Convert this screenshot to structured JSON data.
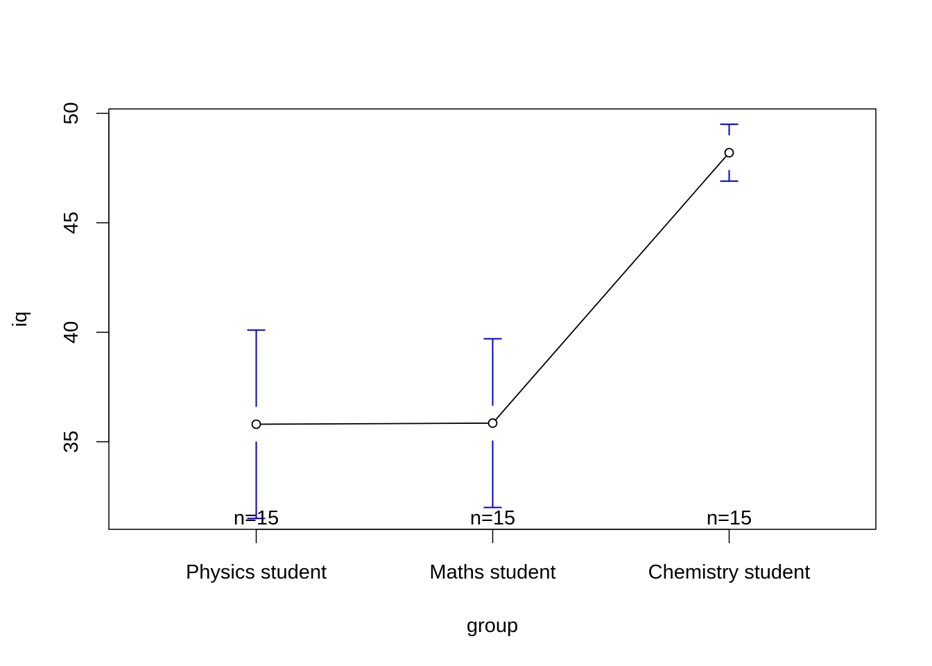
{
  "chart_data": {
    "type": "line",
    "xlabel": "group",
    "ylabel": "iq",
    "categories": [
      "Physics student",
      "Maths student",
      "Chemistry student"
    ],
    "series": [
      {
        "values": [
          35.8,
          35.85,
          48.2
        ],
        "lower": [
          31.5,
          32.0,
          46.9
        ],
        "upper": [
          40.1,
          39.7,
          49.5
        ],
        "counts": [
          "n=15",
          "n=15",
          "n=15"
        ]
      }
    ],
    "yticks": [
      "35",
      "40",
      "45",
      "50"
    ],
    "ylim": [
      31.0,
      50.2
    ],
    "grid": false,
    "colors": {
      "line": "#000000",
      "error_bar": "#0000cc"
    }
  }
}
